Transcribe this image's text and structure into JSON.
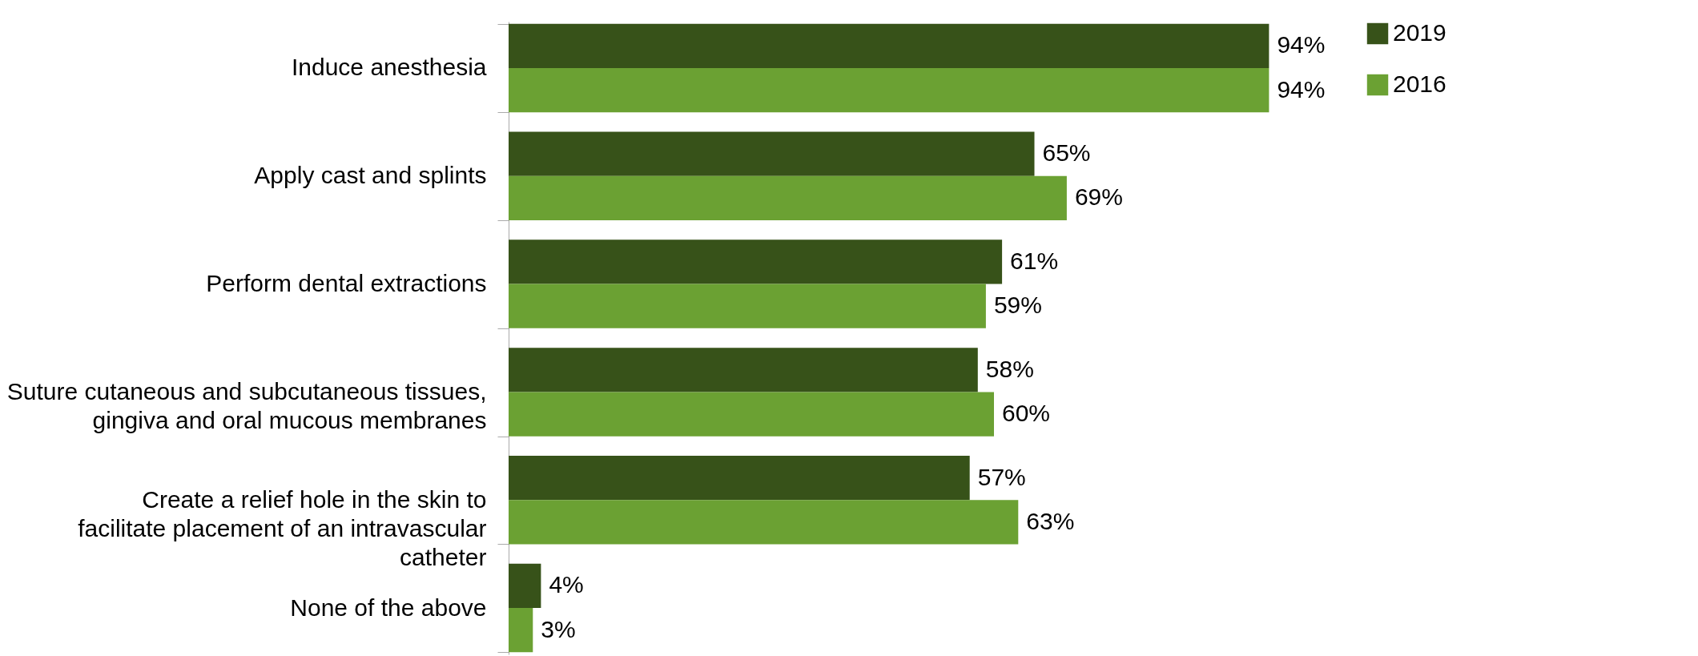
{
  "chart_data": {
    "type": "bar",
    "orientation": "horizontal",
    "categories": [
      "Induce anesthesia",
      "Apply cast and splints",
      "Perform dental extractions",
      "Suture cutaneous and subcutaneous tissues, gingiva and oral mucous membranes",
      "Create a relief hole in the skin to facilitate placement of an intravascular catheter",
      "None of the above"
    ],
    "series": [
      {
        "name": "2019",
        "color": "#375219",
        "values": [
          94,
          65,
          61,
          58,
          57,
          4
        ],
        "value_labels": [
          "94%",
          "65%",
          "61%",
          "58%",
          "57%",
          "4%"
        ]
      },
      {
        "name": "2016",
        "color": "#6ba133",
        "values": [
          94,
          69,
          59,
          60,
          63,
          3
        ],
        "value_labels": [
          "94%",
          "69%",
          "59%",
          "60%",
          "63%",
          "3%"
        ]
      }
    ],
    "legend": "right"
  }
}
